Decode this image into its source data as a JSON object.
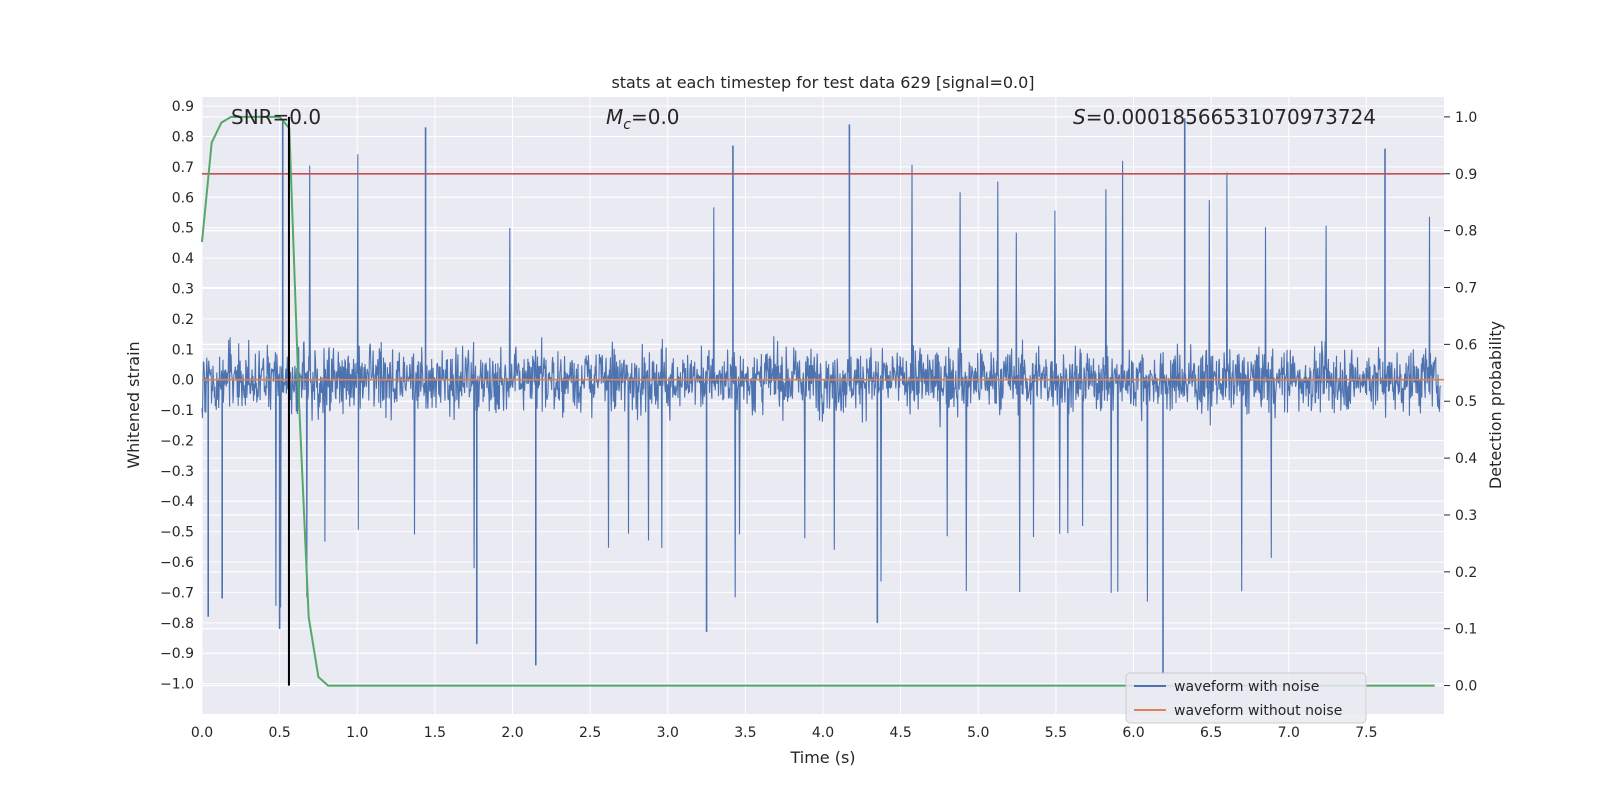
{
  "chart_data": {
    "type": "line",
    "title": "stats at each timestep for test data 629 [signal=0.0]",
    "xlabel": "Time (s)",
    "ylabel": "Whitened strain",
    "ylabel_right": "Detection probability",
    "xlim": [
      0.0,
      8.0
    ],
    "ylim": [
      -1.1,
      0.93
    ],
    "ylim_right": [
      -0.05,
      1.035
    ],
    "x_ticks": [
      "0.0",
      "0.5",
      "1.0",
      "1.5",
      "2.0",
      "2.5",
      "3.0",
      "3.5",
      "4.0",
      "4.5",
      "5.0",
      "5.5",
      "6.0",
      "6.5",
      "7.0",
      "7.5"
    ],
    "y_ticks": [
      "0.9",
      "0.8",
      "0.7",
      "0.6",
      "0.5",
      "0.4",
      "0.3",
      "0.2",
      "0.1",
      "0.0",
      "−0.1",
      "−0.2",
      "−0.3",
      "−0.4",
      "−0.5",
      "−0.6",
      "−0.7",
      "−0.8",
      "−0.9",
      "−1.0"
    ],
    "y_ticks_right": [
      "1.0",
      "0.9",
      "0.8",
      "0.7",
      "0.6",
      "0.5",
      "0.4",
      "0.3",
      "0.2",
      "0.1",
      "0.0"
    ],
    "annotations": {
      "snr": "SNR=0.0",
      "mc_symbol": "M",
      "mc_sub": "c",
      "mc_value": "=0.0",
      "s_symbol": "S",
      "s_value": "=0.00018566531070973724"
    },
    "legend": {
      "position": "lower-right",
      "entries": [
        "waveform with noise",
        "waveform without noise"
      ]
    },
    "series": [
      {
        "name": "waveform with noise",
        "color": "#4c72b0",
        "axis": "left",
        "description": "dense noisy whitened strain, mostly within [-0.5, 0.5], peaks up to ~0.85 and down to ~-0.97",
        "noise_core_range": [
          -0.3,
          0.3
        ],
        "spikes": [
          {
            "x": 0.04,
            "y": -0.78
          },
          {
            "x": 0.13,
            "y": -0.72
          },
          {
            "x": 0.5,
            "y": -0.82
          },
          {
            "x": 1.44,
            "y": 0.83
          },
          {
            "x": 1.77,
            "y": -0.87
          },
          {
            "x": 2.15,
            "y": -0.94
          },
          {
            "x": 3.25,
            "y": -0.83
          },
          {
            "x": 3.42,
            "y": 0.77
          },
          {
            "x": 4.17,
            "y": 0.84
          },
          {
            "x": 4.35,
            "y": -0.8
          },
          {
            "x": 6.19,
            "y": -0.97
          },
          {
            "x": 6.33,
            "y": 0.86
          },
          {
            "x": 7.62,
            "y": 0.76
          },
          {
            "x": 0.52,
            "y": 0.85
          }
        ]
      },
      {
        "name": "waveform without noise",
        "color": "#dd8452",
        "axis": "left",
        "x": [
          0.0,
          8.0
        ],
        "y": [
          0.0,
          0.0
        ]
      },
      {
        "name": "detection probability",
        "color": "#55a868",
        "axis": "right",
        "x": [
          0.0,
          0.0625,
          0.125,
          0.1875,
          0.25,
          0.3125,
          0.375,
          0.4375,
          0.5,
          0.5625,
          0.625,
          0.6875,
          0.75,
          0.8125,
          0.875,
          1.0,
          2.0,
          3.0,
          4.0,
          5.0,
          6.0,
          7.0,
          7.94
        ],
        "y": [
          0.78,
          0.955,
          0.99,
          1.0,
          1.0,
          1.0,
          1.0,
          1.0,
          1.0,
          0.98,
          0.5,
          0.12,
          0.015,
          0.0,
          0.0,
          0.0,
          0.0,
          0.0,
          0.0,
          0.0,
          0.0,
          0.0,
          0.0
        ]
      },
      {
        "name": "threshold",
        "color": "#c44e52",
        "axis": "right",
        "x": [
          0.0,
          8.0
        ],
        "y": [
          0.9,
          0.9
        ]
      },
      {
        "name": "current timestep",
        "color": "#000000",
        "axis": "right",
        "x": [
          0.56,
          0.56
        ],
        "y": [
          0.0,
          1.0
        ]
      }
    ]
  }
}
